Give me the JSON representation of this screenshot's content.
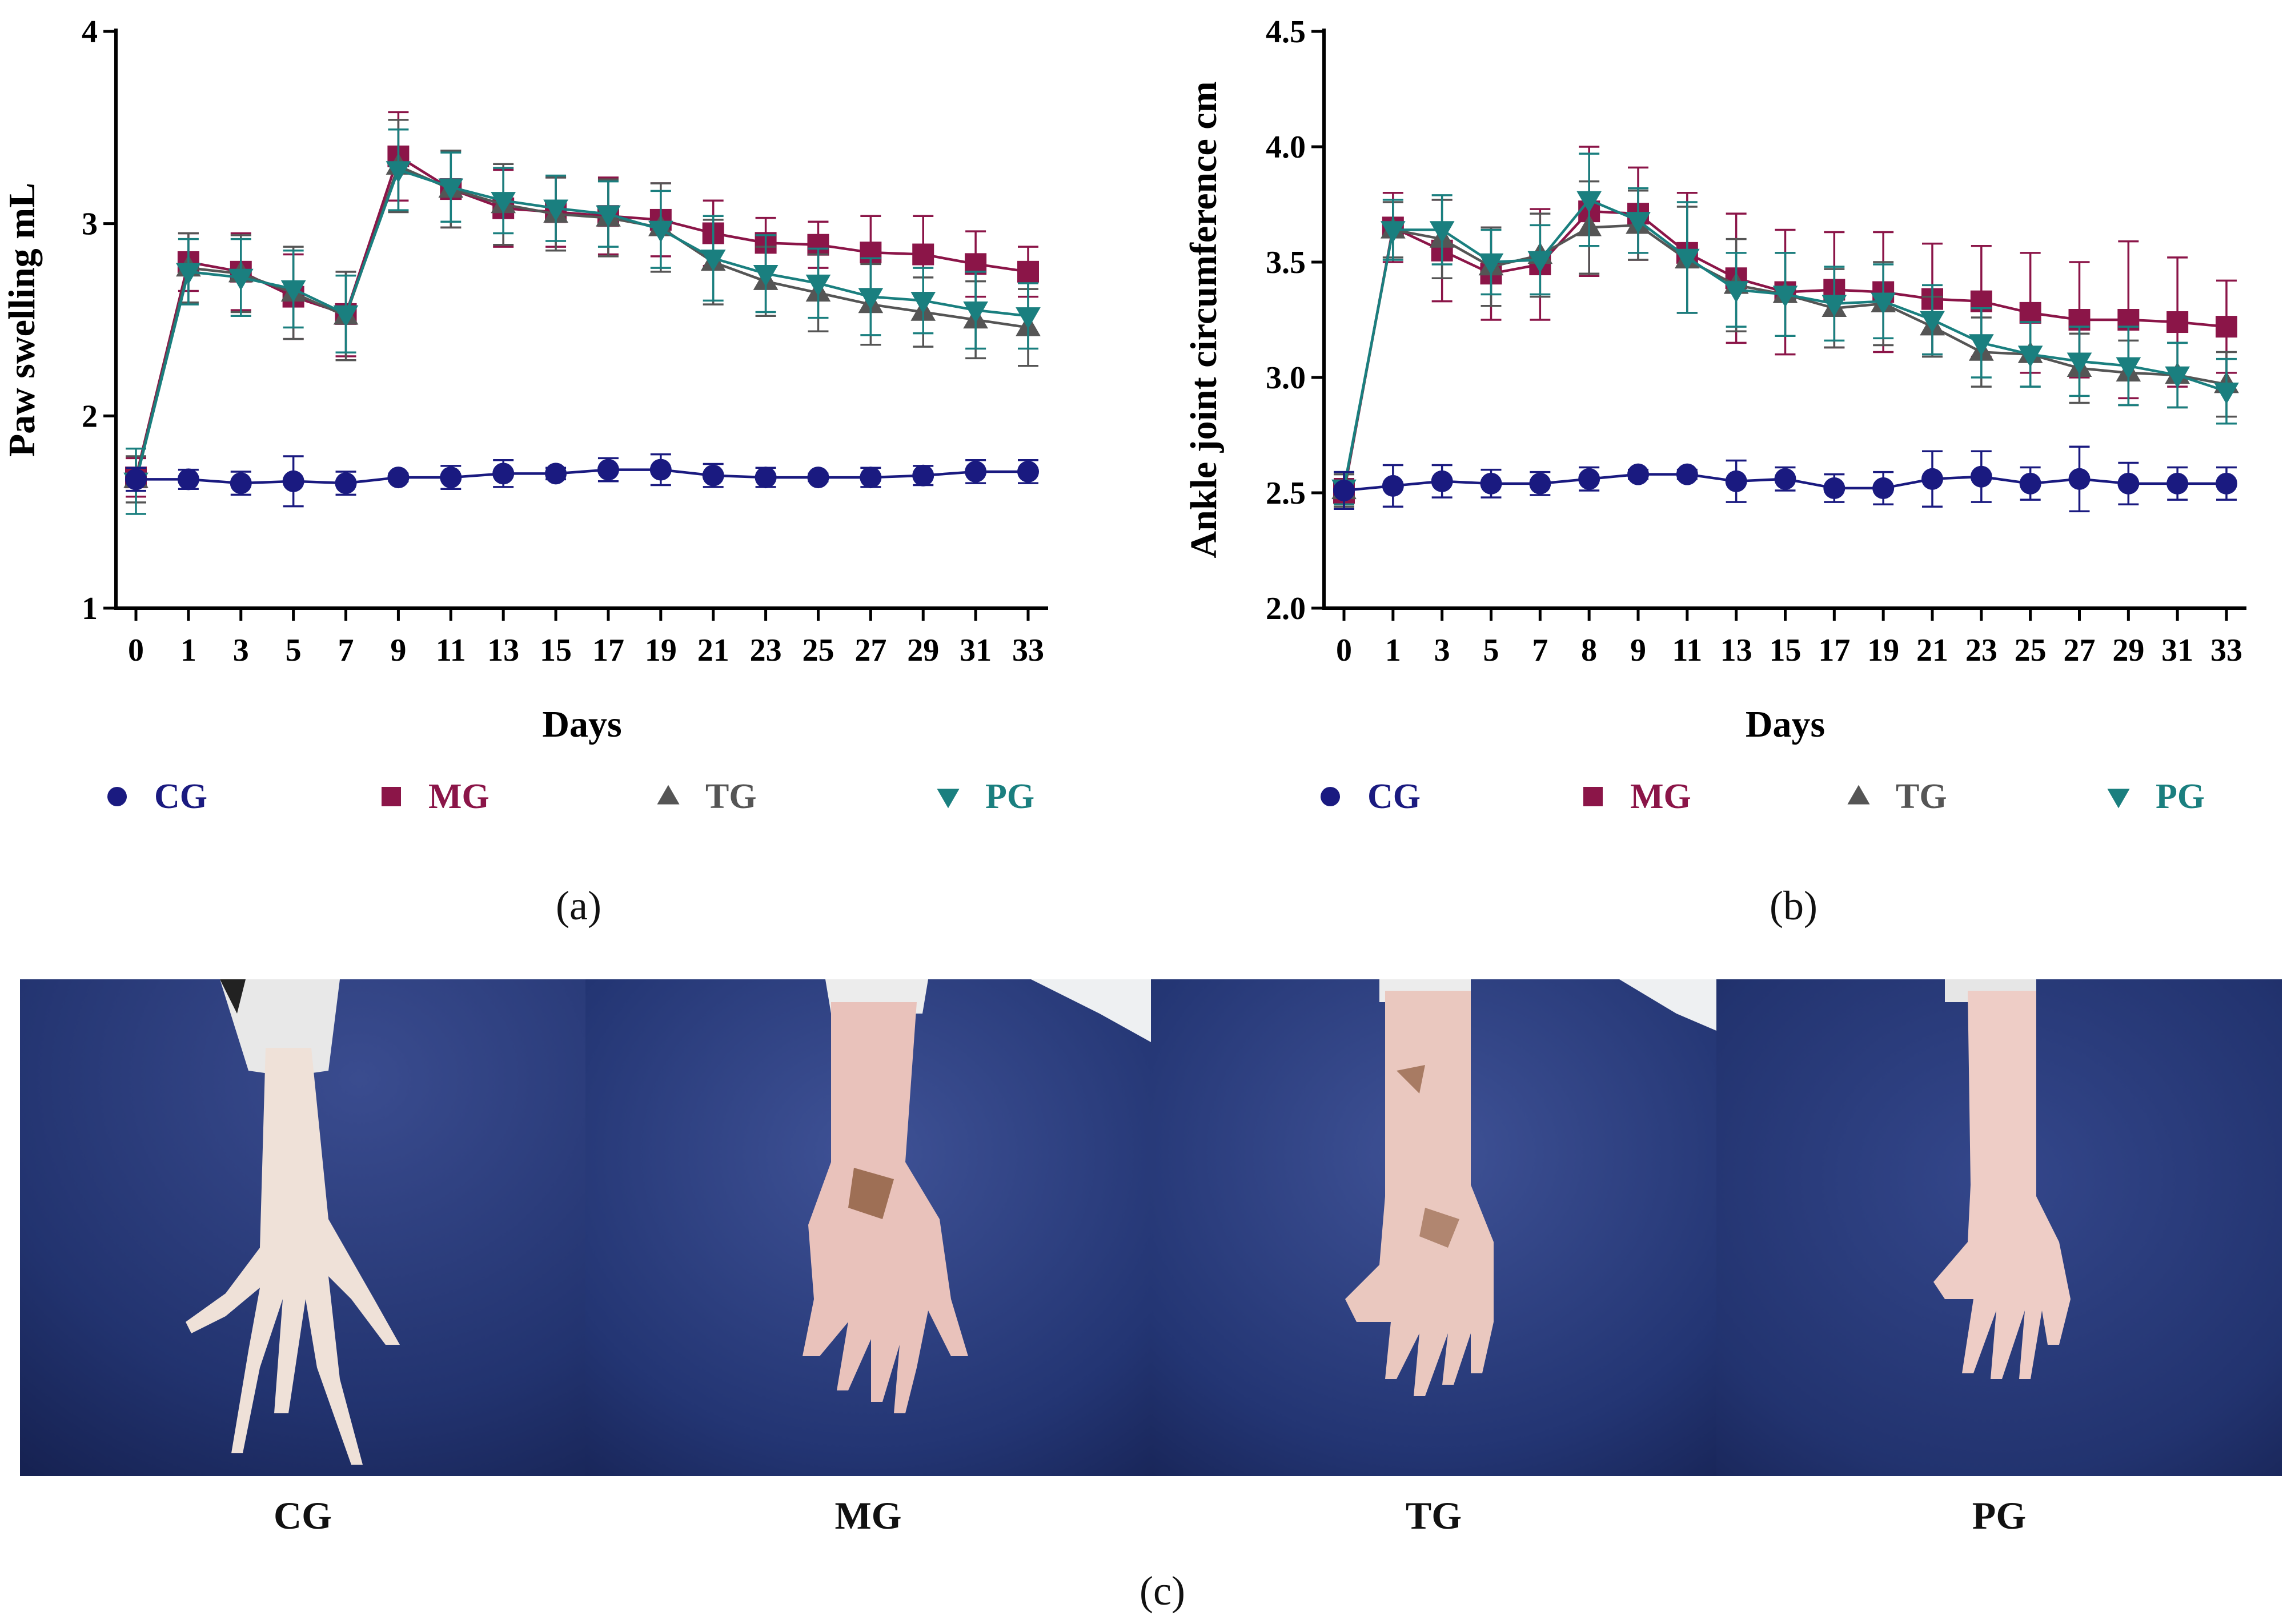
{
  "figure": {
    "panel_labels": {
      "a": "(a)",
      "b": "(b)",
      "c": "(c)"
    },
    "photos": [
      {
        "label": "CG",
        "condition": "normal"
      },
      {
        "label": "MG",
        "condition": "inflamed"
      },
      {
        "label": "TG",
        "condition": "inflamed"
      },
      {
        "label": "PG",
        "condition": "mild"
      }
    ]
  },
  "colors": {
    "CG": "#1a1a80",
    "MG": "#8b1548",
    "TG": "#555555",
    "PG": "#1a7f7f",
    "background": "#ffffff",
    "axis": "#000000",
    "photo_bg": "#1f2f6e"
  },
  "chart_data": [
    {
      "id": "a",
      "type": "line",
      "xlabel": "Days",
      "ylabel": "Paw swelling mL",
      "ylim": [
        1,
        4
      ],
      "yticks": [
        1,
        2,
        3,
        4
      ],
      "ytick_labels": [
        "1",
        "2",
        "3",
        "4"
      ],
      "categories": [
        "0",
        "1",
        "3",
        "5",
        "7",
        "9",
        "11",
        "13",
        "15",
        "17",
        "19",
        "21",
        "23",
        "25",
        "27",
        "29",
        "31",
        "33"
      ],
      "legend": "bottom",
      "series": [
        {
          "name": "CG",
          "marker": "circle",
          "color": "#1a1a80",
          "values": [
            1.67,
            1.67,
            1.65,
            1.66,
            1.65,
            1.68,
            1.68,
            1.7,
            1.7,
            1.72,
            1.72,
            1.69,
            1.68,
            1.68,
            1.68,
            1.69,
            1.71,
            1.71
          ],
          "errors": [
            0.06,
            0.05,
            0.06,
            0.13,
            0.06,
            0.02,
            0.06,
            0.07,
            0.03,
            0.06,
            0.08,
            0.06,
            0.05,
            0.02,
            0.05,
            0.05,
            0.06,
            0.06
          ]
        },
        {
          "name": "MG",
          "marker": "square",
          "color": "#8b1548",
          "values": [
            1.68,
            2.8,
            2.75,
            2.62,
            2.53,
            3.35,
            3.18,
            3.08,
            3.06,
            3.04,
            3.02,
            2.95,
            2.9,
            2.89,
            2.85,
            2.84,
            2.79,
            2.75
          ],
          "errors": [
            0.1,
            0.15,
            0.2,
            0.22,
            0.22,
            0.23,
            0.2,
            0.2,
            0.18,
            0.2,
            0.19,
            0.17,
            0.13,
            0.12,
            0.19,
            0.2,
            0.17,
            0.13
          ]
        },
        {
          "name": "TG",
          "marker": "triangle-up",
          "color": "#555555",
          "values": [
            1.67,
            2.77,
            2.74,
            2.64,
            2.52,
            3.3,
            3.18,
            3.1,
            3.05,
            3.03,
            2.98,
            2.8,
            2.7,
            2.64,
            2.58,
            2.54,
            2.5,
            2.46
          ],
          "errors": [
            0.12,
            0.18,
            0.2,
            0.24,
            0.23,
            0.24,
            0.2,
            0.21,
            0.19,
            0.2,
            0.23,
            0.22,
            0.18,
            0.2,
            0.21,
            0.18,
            0.2,
            0.2
          ]
        },
        {
          "name": "PG",
          "marker": "triangle-down",
          "color": "#1a7f7f",
          "values": [
            1.66,
            2.75,
            2.72,
            2.66,
            2.53,
            3.28,
            3.19,
            3.12,
            3.08,
            3.05,
            2.97,
            2.82,
            2.74,
            2.69,
            2.62,
            2.6,
            2.55,
            2.52
          ],
          "errors": [
            0.17,
            0.17,
            0.2,
            0.2,
            0.2,
            0.21,
            0.18,
            0.17,
            0.17,
            0.17,
            0.2,
            0.22,
            0.2,
            0.18,
            0.2,
            0.17,
            0.2,
            0.17
          ]
        }
      ]
    },
    {
      "id": "b",
      "type": "line",
      "xlabel": "Days",
      "ylabel": "Ankle joint circumference cm",
      "ylim": [
        2.0,
        4.5
      ],
      "yticks": [
        2.0,
        2.5,
        3.0,
        3.5,
        4.0,
        4.5
      ],
      "ytick_labels": [
        "2.0",
        "2.5",
        "3.0",
        "3.5",
        "4.0",
        "4.5"
      ],
      "categories": [
        "0",
        "1",
        "3",
        "5",
        "7",
        "8",
        "9",
        "11",
        "13",
        "15",
        "17",
        "19",
        "21",
        "23",
        "25",
        "27",
        "29",
        "31",
        "33"
      ],
      "legend": "bottom",
      "series": [
        {
          "name": "CG",
          "marker": "circle",
          "color": "#1a1a80",
          "values": [
            2.51,
            2.53,
            2.55,
            2.54,
            2.54,
            2.56,
            2.58,
            2.58,
            2.55,
            2.56,
            2.52,
            2.52,
            2.56,
            2.57,
            2.54,
            2.56,
            2.54,
            2.54,
            2.54
          ],
          "errors": [
            0.08,
            0.09,
            0.07,
            0.06,
            0.05,
            0.05,
            0.02,
            0.02,
            0.09,
            0.05,
            0.06,
            0.07,
            0.12,
            0.11,
            0.07,
            0.14,
            0.09,
            0.07,
            0.07
          ]
        },
        {
          "name": "MG",
          "marker": "square",
          "color": "#8b1548",
          "values": [
            2.5,
            3.65,
            3.55,
            3.45,
            3.49,
            3.72,
            3.71,
            3.54,
            3.43,
            3.37,
            3.38,
            3.37,
            3.34,
            3.33,
            3.28,
            3.25,
            3.25,
            3.24,
            3.22
          ],
          "errors": [
            0.06,
            0.15,
            0.22,
            0.2,
            0.24,
            0.28,
            0.2,
            0.26,
            0.28,
            0.27,
            0.25,
            0.26,
            0.24,
            0.24,
            0.26,
            0.25,
            0.34,
            0.28,
            0.2
          ]
        },
        {
          "name": "TG",
          "marker": "triangle-up",
          "color": "#555555",
          "values": [
            2.51,
            3.64,
            3.6,
            3.48,
            3.53,
            3.65,
            3.66,
            3.51,
            3.4,
            3.36,
            3.3,
            3.32,
            3.22,
            3.11,
            3.1,
            3.04,
            3.02,
            3.01,
            2.97
          ],
          "errors": [
            0.07,
            0.12,
            0.17,
            0.17,
            0.18,
            0.2,
            0.15,
            0.23,
            0.2,
            0.18,
            0.17,
            0.18,
            0.13,
            0.15,
            0.14,
            0.15,
            0.14,
            0.14,
            0.14
          ]
        },
        {
          "name": "PG",
          "marker": "triangle-down",
          "color": "#1a7f7f",
          "values": [
            2.52,
            3.64,
            3.64,
            3.5,
            3.51,
            3.77,
            3.68,
            3.52,
            3.38,
            3.36,
            3.32,
            3.33,
            3.25,
            3.15,
            3.1,
            3.07,
            3.05,
            3.01,
            2.94
          ],
          "errors": [
            0.07,
            0.13,
            0.15,
            0.14,
            0.15,
            0.2,
            0.14,
            0.24,
            0.16,
            0.18,
            0.16,
            0.16,
            0.15,
            0.15,
            0.14,
            0.15,
            0.17,
            0.14,
            0.14
          ]
        }
      ]
    }
  ]
}
